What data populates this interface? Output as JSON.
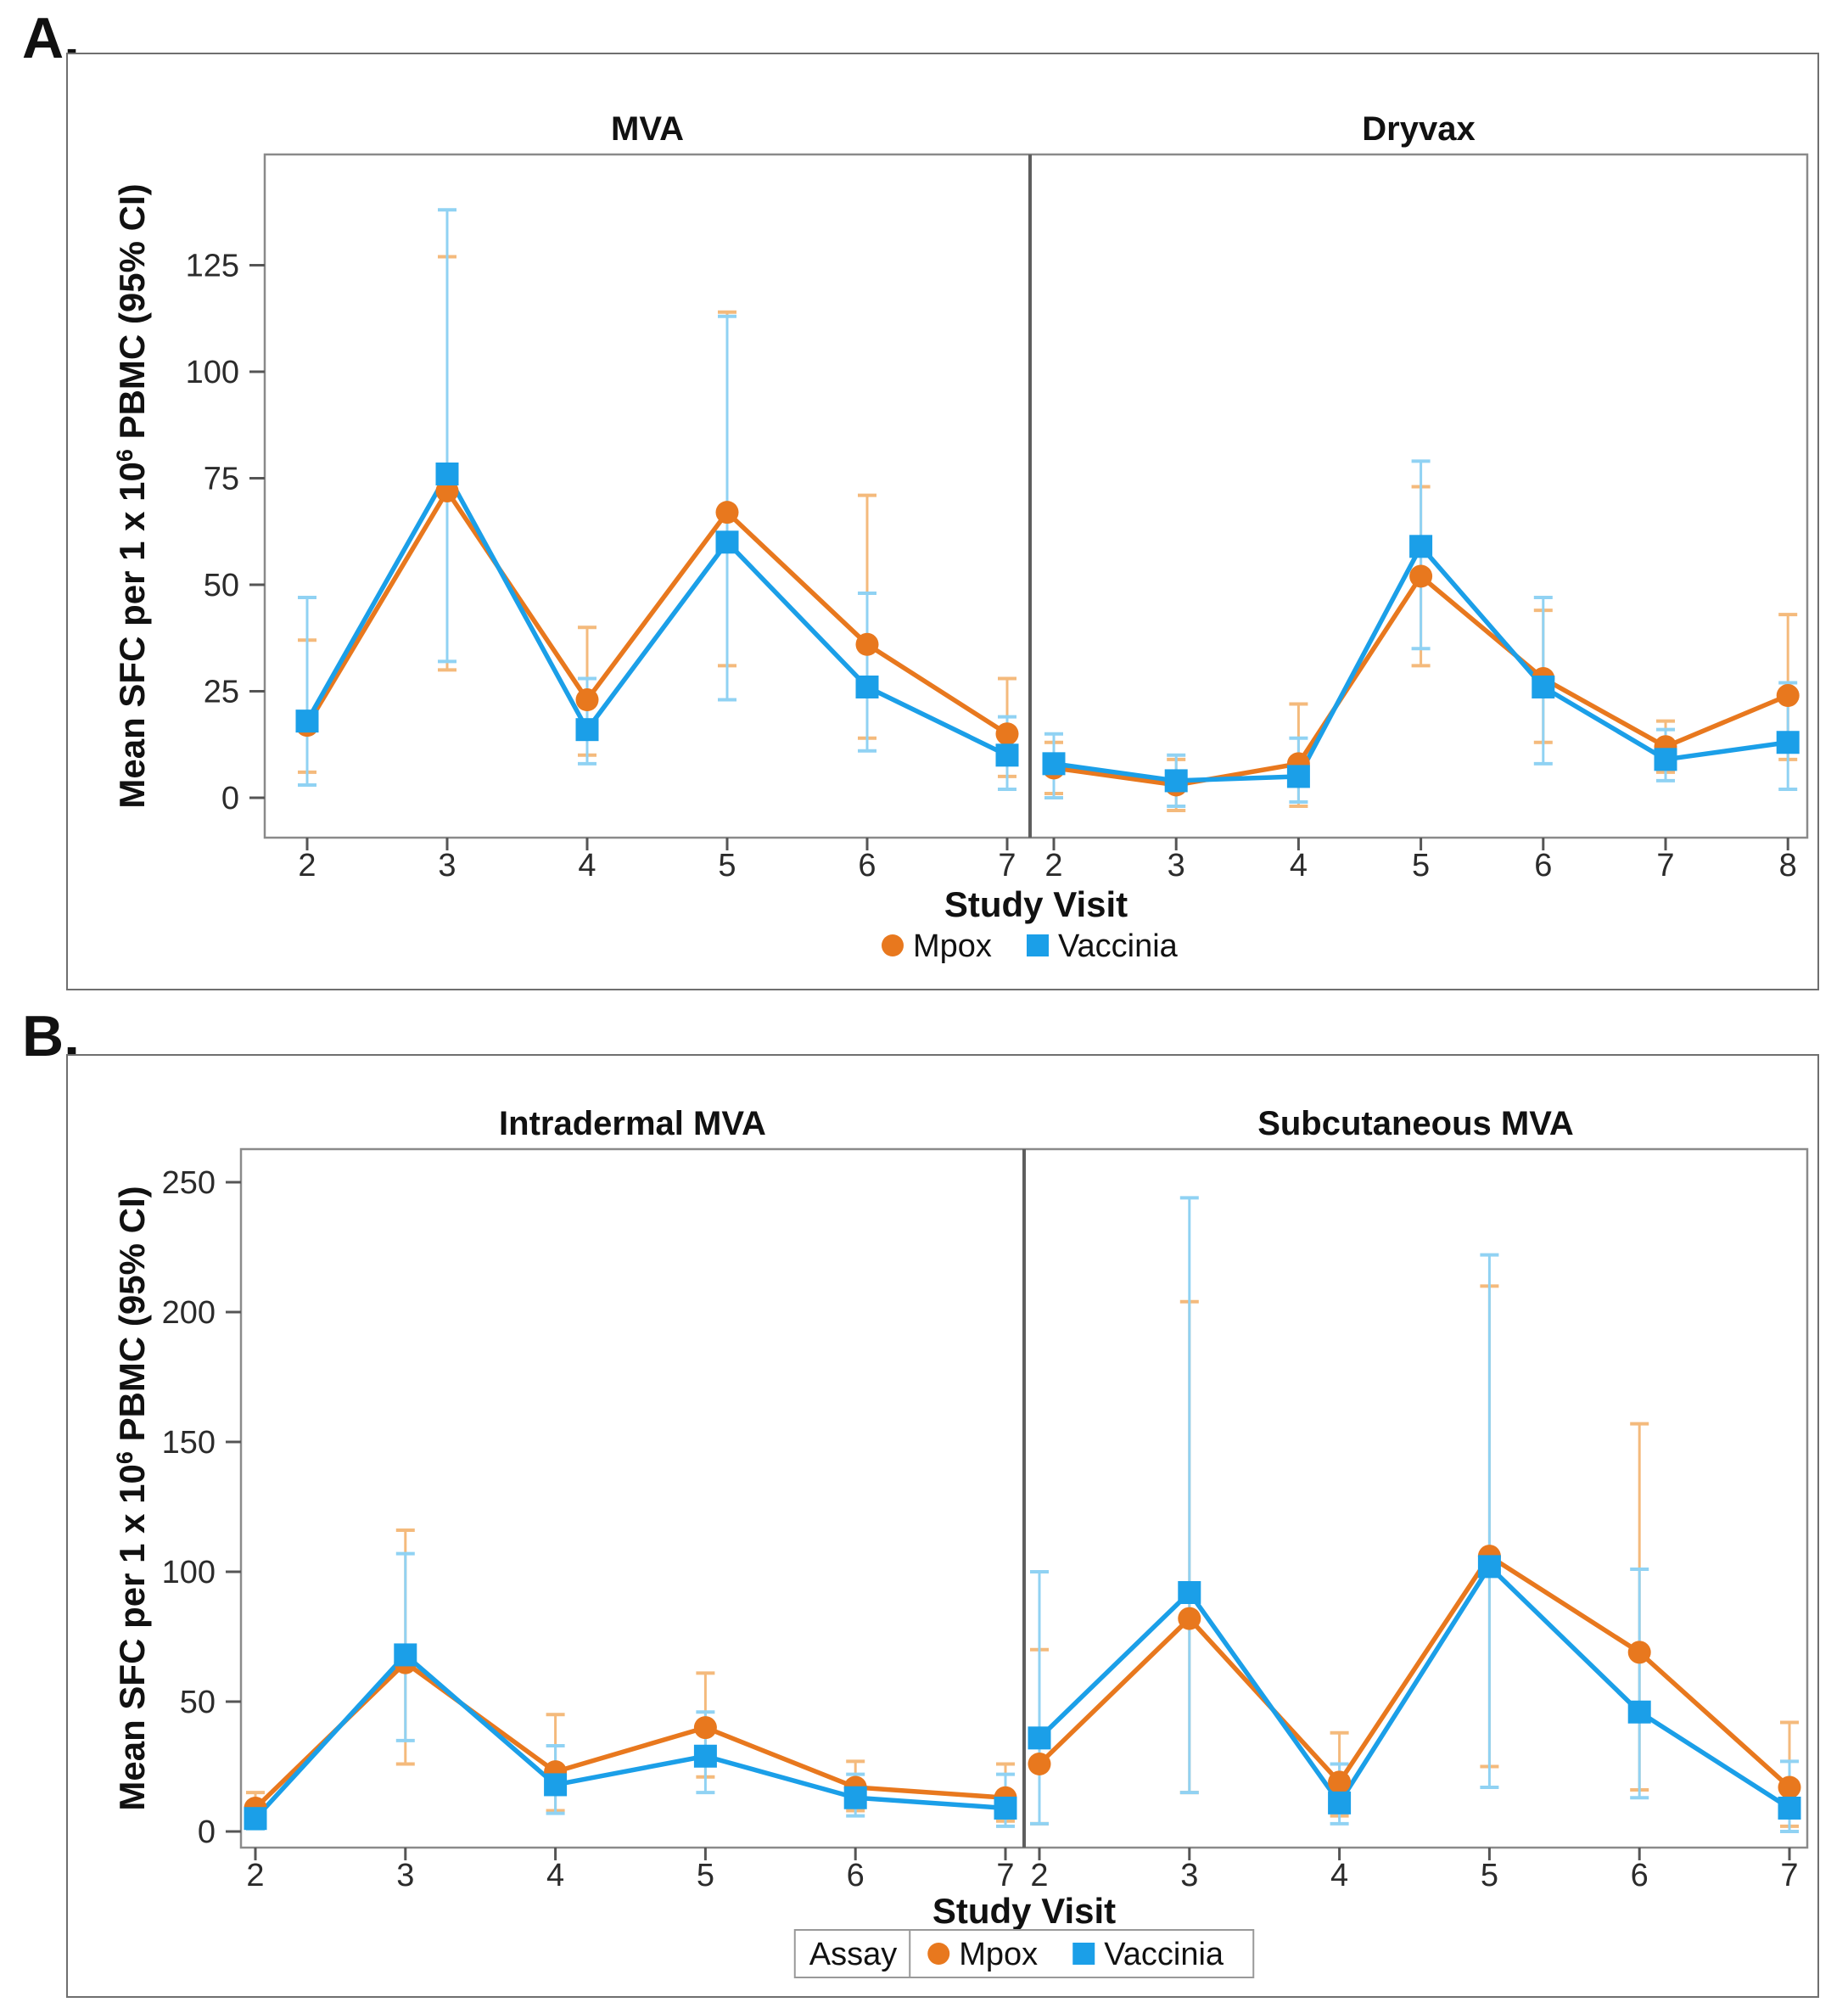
{
  "figure": {
    "panel_a_label": "A.",
    "panel_b_label": "B."
  },
  "colors": {
    "mpox": "#E8781E",
    "mpox_ci": "#F4BA7C",
    "vaccinia": "#1B9FE8",
    "vaccinia_ci": "#90D2F3",
    "frame": "#8a8a8a",
    "divider": "#5e5e5e",
    "text": "#111111",
    "tick_text": "#2b2b2b"
  },
  "chart_data": [
    {
      "panel": "A",
      "type": "line",
      "ylabel": "Mean SFC per 1 x 10⁶ PBMC (95% CI)",
      "xlabel": "Study Visit",
      "yticks": [
        0,
        25,
        50,
        75,
        100,
        125
      ],
      "ylim": [
        -9,
        151
      ],
      "grid": false,
      "legend": {
        "title": null,
        "items": [
          {
            "label": "Mpox",
            "marker": "circle",
            "color": "#E8781E"
          },
          {
            "label": "Vaccinia",
            "marker": "square",
            "color": "#1B9FE8"
          }
        ]
      },
      "subpanels": [
        {
          "title": "MVA",
          "x": [
            2,
            3,
            4,
            5,
            6,
            7
          ],
          "series": [
            {
              "name": "Mpox",
              "marker": "circle",
              "color": "#E8781E",
              "ci_color": "#F4BA7C",
              "means": [
                17,
                72,
                23,
                67,
                36,
                15
              ],
              "ci_low": [
                6,
                30,
                10,
                31,
                14,
                5
              ],
              "ci_high": [
                37,
                127,
                40,
                114,
                71,
                28
              ]
            },
            {
              "name": "Vaccinia",
              "marker": "square",
              "color": "#1B9FE8",
              "ci_color": "#90D2F3",
              "means": [
                18,
                76,
                16,
                60,
                26,
                10
              ],
              "ci_low": [
                3,
                32,
                8,
                23,
                11,
                2
              ],
              "ci_high": [
                47,
                138,
                28,
                113,
                48,
                19
              ]
            }
          ]
        },
        {
          "title": "Dryvax",
          "x": [
            2,
            3,
            4,
            5,
            6,
            7,
            8
          ],
          "series": [
            {
              "name": "Mpox",
              "marker": "circle",
              "color": "#E8781E",
              "ci_color": "#F4BA7C",
              "means": [
                7,
                3,
                8,
                52,
                28,
                12,
                24
              ],
              "ci_low": [
                1,
                -3,
                -2,
                31,
                13,
                6,
                9
              ],
              "ci_high": [
                13,
                9,
                22,
                73,
                44,
                18,
                43
              ]
            },
            {
              "name": "Vaccinia",
              "marker": "square",
              "color": "#1B9FE8",
              "ci_color": "#90D2F3",
              "means": [
                8,
                4,
                5,
                59,
                26,
                9,
                13
              ],
              "ci_low": [
                0,
                -2,
                -1,
                35,
                8,
                4,
                2
              ],
              "ci_high": [
                15,
                10,
                14,
                79,
                47,
                16,
                27
              ]
            }
          ]
        }
      ]
    },
    {
      "panel": "B",
      "type": "line",
      "ylabel": "Mean SFC per 1 x 10⁶ PBMC (95% CI)",
      "xlabel": "Study Visit",
      "yticks": [
        0,
        50,
        100,
        150,
        200,
        250
      ],
      "ylim": [
        -12,
        263
      ],
      "grid": false,
      "legend": {
        "title": "Assay",
        "items": [
          {
            "label": "Mpox",
            "marker": "circle",
            "color": "#E8781E"
          },
          {
            "label": "Vaccinia",
            "marker": "square",
            "color": "#1B9FE8"
          }
        ]
      },
      "subpanels": [
        {
          "title": "Intradermal MVA",
          "x": [
            2,
            3,
            4,
            5,
            6,
            7
          ],
          "series": [
            {
              "name": "Mpox",
              "marker": "circle",
              "color": "#E8781E",
              "ci_color": "#F4BA7C",
              "means": [
                9,
                65,
                23,
                40,
                17,
                13
              ],
              "ci_low": [
                3,
                26,
                8,
                21,
                8,
                4
              ],
              "ci_high": [
                15,
                116,
                45,
                61,
                27,
                26
              ]
            },
            {
              "name": "Vaccinia",
              "marker": "square",
              "color": "#1B9FE8",
              "ci_color": "#90D2F3",
              "means": [
                5,
                68,
                18,
                29,
                13,
                9
              ],
              "ci_low": [
                1,
                35,
                7,
                15,
                6,
                2
              ],
              "ci_high": [
                10,
                107,
                33,
                46,
                22,
                22
              ]
            }
          ]
        },
        {
          "title": "Subcutaneous MVA",
          "x": [
            2,
            3,
            4,
            5,
            6,
            7
          ],
          "series": [
            {
              "name": "Mpox",
              "marker": "circle",
              "color": "#E8781E",
              "ci_color": "#F4BA7C",
              "means": [
                26,
                82,
                19,
                106,
                69,
                17
              ],
              "ci_low": [
                3,
                15,
                6,
                25,
                16,
                2
              ],
              "ci_high": [
                70,
                204,
                38,
                210,
                157,
                42
              ]
            },
            {
              "name": "Vaccinia",
              "marker": "square",
              "color": "#1B9FE8",
              "ci_color": "#90D2F3",
              "means": [
                36,
                92,
                11,
                102,
                46,
                9
              ],
              "ci_low": [
                3,
                15,
                3,
                17,
                13,
                0
              ],
              "ci_high": [
                100,
                244,
                26,
                222,
                101,
                27
              ]
            }
          ]
        }
      ]
    }
  ]
}
